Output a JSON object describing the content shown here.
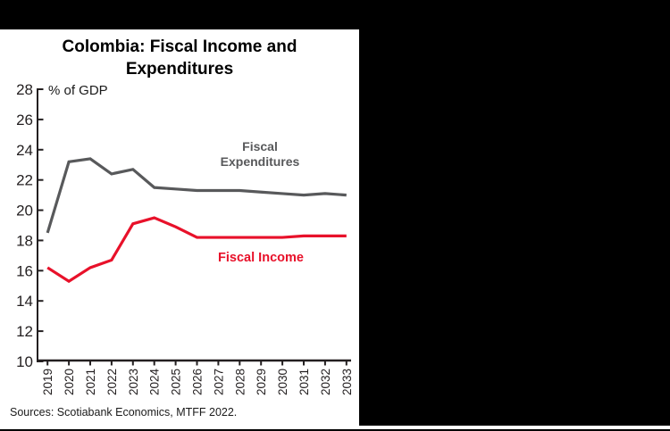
{
  "window": {
    "surround_bg": "#000000",
    "page_bg": "#ffffff"
  },
  "chart_data": {
    "type": "line",
    "title": "Colombia: Fiscal Income and Expenditures",
    "inner_axis_label": "% of GDP",
    "xlabel": "",
    "ylabel": "% of GDP",
    "ylim": [
      10,
      28
    ],
    "y_ticks": [
      28,
      26,
      24,
      22,
      20,
      18,
      16,
      14,
      12,
      10
    ],
    "grid": false,
    "legend_position": "inline-labels-on-plot",
    "categories": [
      "2019",
      "2020",
      "2021",
      "2022",
      "2023",
      "2024",
      "2025",
      "2026",
      "2027",
      "2028",
      "2029",
      "2030",
      "2031",
      "2032",
      "2033"
    ],
    "series": [
      {
        "name": "Fiscal Expenditures",
        "color": "#58595b",
        "values": [
          18.5,
          23.2,
          23.4,
          22.4,
          22.7,
          21.5,
          21.4,
          21.3,
          21.3,
          21.3,
          21.2,
          21.1,
          21.0,
          21.1,
          21.0
        ]
      },
      {
        "name": "Fiscal Income",
        "color": "#e8112a",
        "values": [
          16.2,
          15.3,
          16.2,
          16.7,
          19.1,
          19.5,
          18.9,
          18.2,
          18.2,
          18.2,
          18.2,
          18.2,
          18.3,
          18.3,
          18.3
        ]
      }
    ]
  },
  "colors": {
    "axis": "#231f20",
    "expenditures_gray": "#58595b",
    "income_red": "#e8112a"
  },
  "source_note": "Sources: Scotiabank Economics, MTFF 2022."
}
